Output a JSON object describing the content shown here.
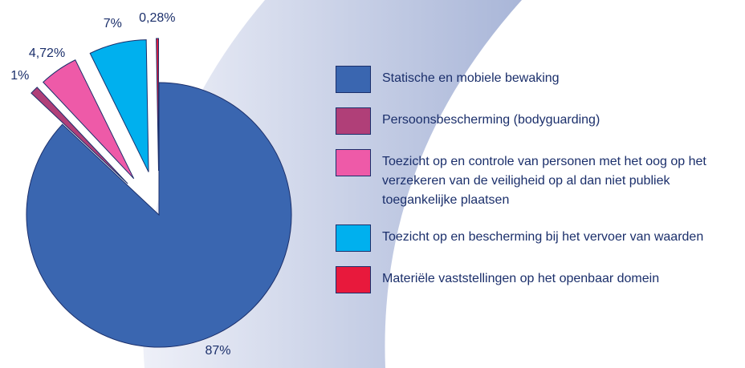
{
  "chart_data": {
    "type": "pie",
    "categories": [
      "Statische en mobiele bewaking",
      "Persoonsbescherming (bodyguarding)",
      "Toezicht op en controle van personen met het oog op het verzekeren van de veiligheid op al dan niet publiek toegankelijke plaatsen",
      "Toezicht op en bescherming bij het vervoer van waarden",
      "Materiële vaststellingen op het openbaar domein"
    ],
    "values": [
      87,
      1,
      4.72,
      7,
      0.28
    ],
    "value_labels": [
      "87%",
      "1%",
      "4,72%",
      "7%",
      "0,28%"
    ],
    "colors": [
      "#3a66b0",
      "#b03f78",
      "#ee5aa8",
      "#00b0ee",
      "#e8193c"
    ]
  }
}
